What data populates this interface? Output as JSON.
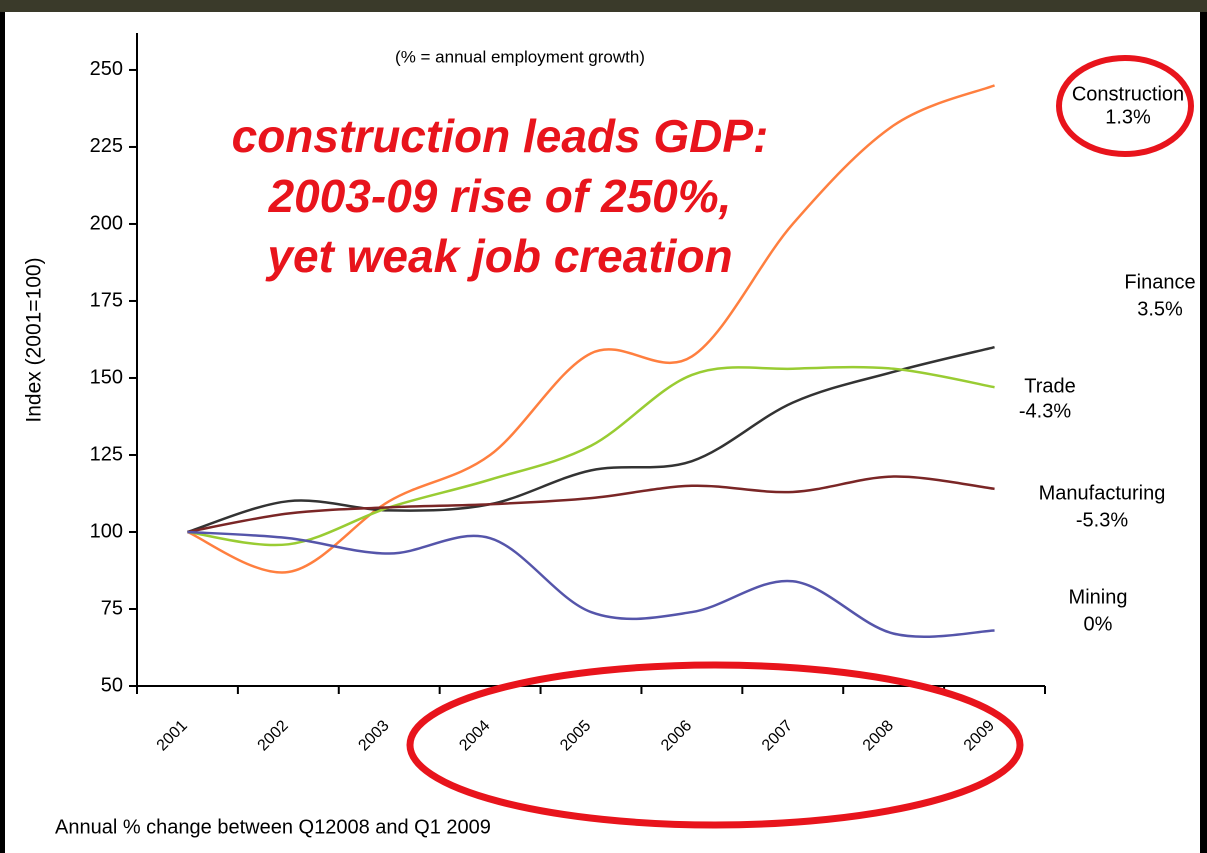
{
  "chart_data": {
    "type": "line",
    "subtitle": "(% = annual employment growth)",
    "annotation": [
      "construction leads GDP:",
      "2003-09 rise of 250%,",
      "yet weak job creation"
    ],
    "ylabel": "Index (2001=100)",
    "footer": "Annual %  change between Q12008 and Q1 2009",
    "categories": [
      "2001",
      "2002",
      "2003",
      "2004",
      "2005",
      "2006",
      "2007",
      "2008",
      "2009"
    ],
    "series": [
      {
        "name": "Construction",
        "growth": "1.3%",
        "color": "#ff7f3f",
        "values": [
          100,
          87,
          110,
          125,
          158,
          157,
          200,
          232,
          245
        ]
      },
      {
        "name": "Finance",
        "growth": "3.5%",
        "color": "#333333",
        "values": [
          100,
          110,
          107,
          109,
          120,
          123,
          142,
          152,
          160
        ]
      },
      {
        "name": "Trade",
        "growth": "-4.3%",
        "color": "#99cc33",
        "values": [
          100,
          96,
          108,
          117,
          128,
          151,
          153,
          153,
          147
        ]
      },
      {
        "name": "Manufacturing",
        "growth": "-5.3%",
        "color": "#7a2626",
        "values": [
          100,
          106,
          108,
          109,
          111,
          115,
          113,
          118,
          114
        ]
      },
      {
        "name": "Mining",
        "growth": "0%",
        "color": "#5555aa",
        "values": [
          100,
          98,
          93,
          98,
          74,
          74,
          84,
          67,
          68
        ]
      }
    ],
    "ylim": [
      50,
      262
    ],
    "yticks": [
      50,
      75,
      100,
      125,
      150,
      175,
      200,
      225,
      250
    ]
  }
}
